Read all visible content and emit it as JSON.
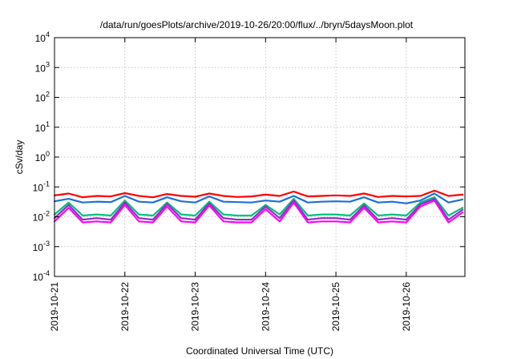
{
  "chart_data": {
    "type": "line",
    "title": "/data/run/goesPlots/archive/2019-10-26/20:00/flux/../bryn/5daysMoon.plot",
    "xlabel": "Coordinated Universal Time (UTC)",
    "ylabel": "cSv/day",
    "yscale": "log",
    "ylim": [
      0.0001,
      10000
    ],
    "y_ticks": [
      {
        "base": "10",
        "exp": "4"
      },
      {
        "base": "10",
        "exp": "3"
      },
      {
        "base": "10",
        "exp": "2"
      },
      {
        "base": "10",
        "exp": "1"
      },
      {
        "base": "10",
        "exp": "0"
      },
      {
        "base": "10",
        "exp": "-1"
      },
      {
        "base": "10",
        "exp": "-2"
      },
      {
        "base": "10",
        "exp": "-3"
      },
      {
        "base": "10",
        "exp": "-4"
      }
    ],
    "xlim": [
      "2019-10-21",
      "2019-10-26 20:00"
    ],
    "x_ticks": [
      "2019-10-21",
      "2019-10-22",
      "2019-10-23",
      "2019-10-24",
      "2019-10-25",
      "2019-10-26"
    ],
    "grid": true,
    "legend": "none",
    "colors": [
      "#ff0000",
      "#1e6fd9",
      "#00c080",
      "#9030c0",
      "#ff00ff"
    ],
    "x_days": [
      0,
      0.2,
      0.4,
      0.6,
      0.8,
      1.0,
      1.2,
      1.4,
      1.6,
      1.8,
      2.0,
      2.2,
      2.4,
      2.6,
      2.8,
      3.0,
      3.2,
      3.4,
      3.6,
      3.8,
      4.0,
      4.2,
      4.4,
      4.6,
      4.8,
      5.0,
      5.2,
      5.4,
      5.6,
      5.8
    ],
    "series": [
      {
        "color": "#ff0000",
        "values": [
          0.052,
          0.06,
          0.045,
          0.05,
          0.048,
          0.062,
          0.05,
          0.045,
          0.058,
          0.05,
          0.047,
          0.06,
          0.05,
          0.046,
          0.048,
          0.055,
          0.05,
          0.07,
          0.048,
          0.05,
          0.052,
          0.05,
          0.06,
          0.046,
          0.05,
          0.048,
          0.05,
          0.075,
          0.05,
          0.055
        ]
      },
      {
        "color": "#1e6fd9",
        "values": [
          0.033,
          0.04,
          0.03,
          0.032,
          0.031,
          0.05,
          0.032,
          0.03,
          0.045,
          0.033,
          0.03,
          0.048,
          0.032,
          0.031,
          0.03,
          0.035,
          0.032,
          0.05,
          0.03,
          0.032,
          0.033,
          0.032,
          0.045,
          0.03,
          0.032,
          0.028,
          0.035,
          0.06,
          0.03,
          0.038
        ]
      },
      {
        "color": "#00c080",
        "values": [
          0.012,
          0.03,
          0.011,
          0.012,
          0.011,
          0.035,
          0.012,
          0.011,
          0.03,
          0.012,
          0.011,
          0.032,
          0.012,
          0.011,
          0.011,
          0.025,
          0.012,
          0.04,
          0.011,
          0.012,
          0.012,
          0.011,
          0.028,
          0.011,
          0.012,
          0.011,
          0.03,
          0.045,
          0.011,
          0.02
        ]
      },
      {
        "color": "#9030c0",
        "values": [
          0.009,
          0.025,
          0.008,
          0.009,
          0.008,
          0.03,
          0.009,
          0.008,
          0.027,
          0.009,
          0.008,
          0.028,
          0.009,
          0.008,
          0.008,
          0.022,
          0.009,
          0.035,
          0.008,
          0.009,
          0.009,
          0.008,
          0.024,
          0.008,
          0.009,
          0.008,
          0.026,
          0.04,
          0.008,
          0.017
        ]
      },
      {
        "color": "#ff00ff",
        "values": [
          0.007,
          0.02,
          0.0065,
          0.007,
          0.0065,
          0.025,
          0.007,
          0.0065,
          0.022,
          0.007,
          0.0065,
          0.024,
          0.007,
          0.0065,
          0.0065,
          0.018,
          0.007,
          0.03,
          0.0065,
          0.007,
          0.007,
          0.0065,
          0.02,
          0.0065,
          0.007,
          0.0065,
          0.022,
          0.035,
          0.0065,
          0.014
        ]
      }
    ]
  }
}
